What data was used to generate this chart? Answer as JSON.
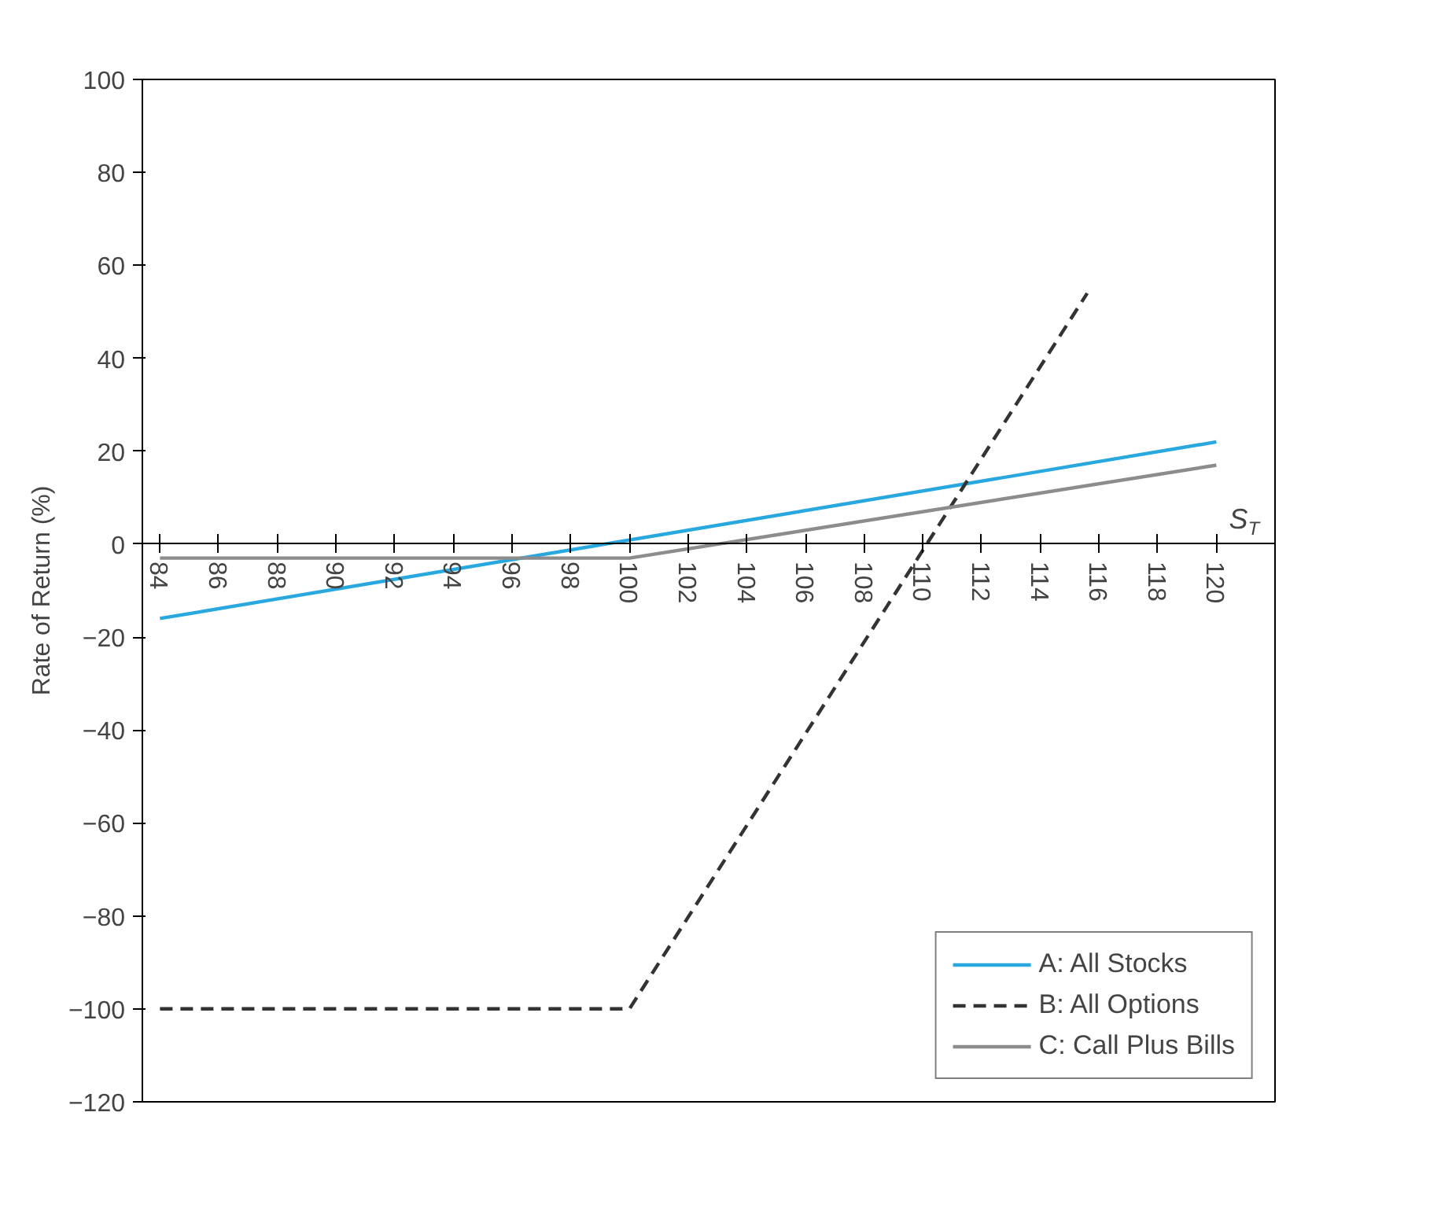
{
  "chart_data": {
    "type": "line",
    "xlabel": "S$_{T}$",
    "ylabel": "Rate of Return (%)",
    "xlim": [
      83.4,
      122
    ],
    "xticks": [
      84,
      86,
      88,
      90,
      92,
      94,
      96,
      98,
      100,
      102,
      104,
      106,
      108,
      110,
      112,
      114,
      116,
      118,
      120
    ],
    "ylim": [
      -120,
      100
    ],
    "yticks": [
      -120,
      -100,
      -80,
      -60,
      -40,
      -20,
      0,
      20,
      40,
      60,
      80,
      100
    ],
    "grid": false,
    "legend": "bottom right",
    "series": [
      {
        "name": "A: All Stocks",
        "color": "#29a8e0",
        "line_style": "solid",
        "x": [
          84,
          120
        ],
        "values": [
          -16,
          22
        ]
      },
      {
        "name": "B: All Options",
        "color": "#333333",
        "line_style": "dashed",
        "x": [
          84,
          100,
          115.6
        ],
        "values": [
          -100,
          -100,
          54
        ]
      },
      {
        "name": "C: Call Plus Bills",
        "color": "#8c8c8c",
        "line_style": "solid",
        "x": [
          84,
          100,
          120
        ],
        "values": [
          -3,
          -3,
          17
        ]
      }
    ]
  }
}
